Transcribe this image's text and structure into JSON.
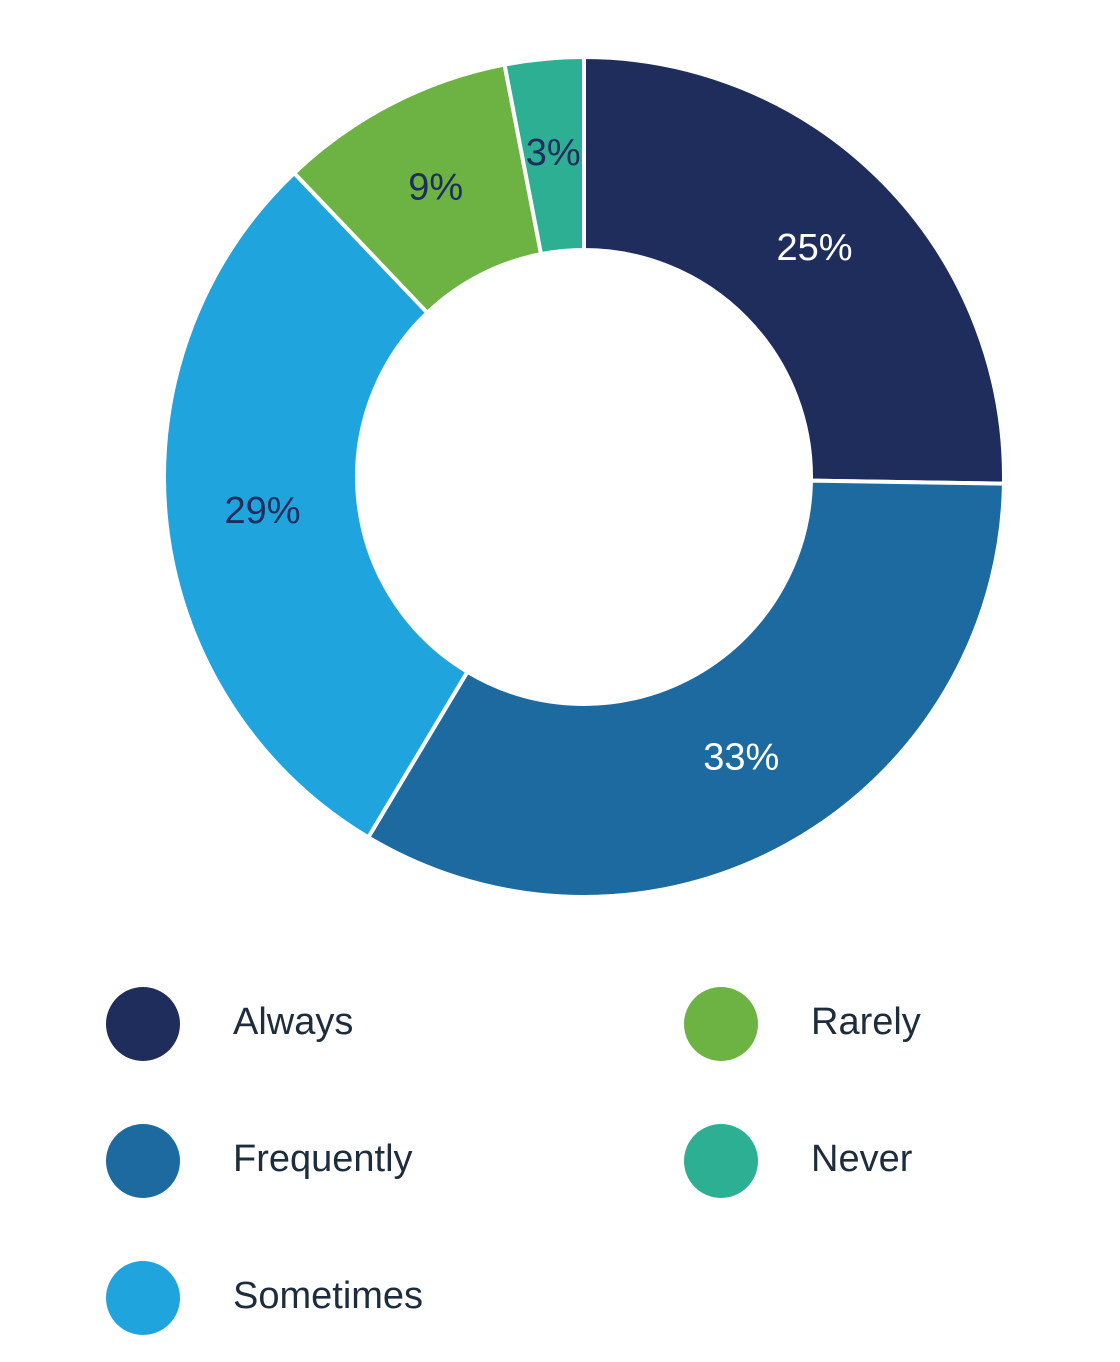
{
  "chart_data": {
    "type": "donut",
    "categories": [
      "Always",
      "Frequently",
      "Sometimes",
      "Rarely",
      "Never"
    ],
    "values": [
      25,
      33,
      29,
      9,
      3
    ],
    "value_labels": [
      "25%",
      "33%",
      "29%",
      "9%",
      "3%"
    ],
    "colors": [
      "#1e2d5c",
      "#1c6aa0",
      "#20a4dd",
      "#6cb343",
      "#2daf93"
    ]
  }
}
